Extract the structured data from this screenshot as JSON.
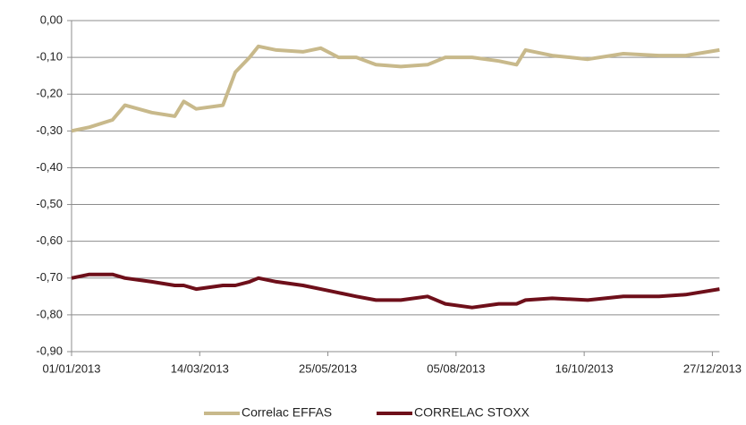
{
  "chart_data": {
    "type": "line",
    "x": [
      "01/01/2013",
      "11/01/2013",
      "24/01/2013",
      "31/01/2013",
      "15/02/2013",
      "28/02/2013",
      "05/03/2013",
      "12/03/2013",
      "27/03/2013",
      "03/04/2013",
      "11/04/2013",
      "16/04/2013",
      "26/04/2013",
      "11/05/2013",
      "21/05/2013",
      "31/05/2013",
      "10/06/2013",
      "21/06/2013",
      "05/07/2013",
      "20/07/2013",
      "30/07/2013",
      "14/08/2013",
      "29/08/2013",
      "08/09/2013",
      "13/09/2013",
      "28/09/2013",
      "18/10/2013",
      "07/11/2013",
      "27/11/2013",
      "12/12/2013",
      "31/12/2013"
    ],
    "series": [
      {
        "name": "Correlac EFFAS",
        "color": "#c8b98b",
        "values": [
          -0.3,
          -0.29,
          -0.27,
          -0.23,
          -0.25,
          -0.26,
          -0.22,
          -0.24,
          -0.23,
          -0.14,
          -0.1,
          -0.07,
          -0.08,
          -0.085,
          -0.075,
          -0.1,
          -0.1,
          -0.12,
          -0.125,
          -0.12,
          -0.1,
          -0.1,
          -0.11,
          -0.12,
          -0.08,
          -0.095,
          -0.105,
          -0.09,
          -0.095,
          -0.095,
          -0.08
        ]
      },
      {
        "name": "CORRELAC STOXX",
        "color": "#6e0f1a",
        "values": [
          -0.7,
          -0.69,
          -0.69,
          -0.7,
          -0.71,
          -0.72,
          -0.72,
          -0.73,
          -0.72,
          -0.72,
          -0.71,
          -0.7,
          -0.71,
          -0.72,
          -0.73,
          -0.74,
          -0.75,
          -0.76,
          -0.76,
          -0.75,
          -0.77,
          -0.78,
          -0.77,
          -0.77,
          -0.76,
          -0.755,
          -0.76,
          -0.75,
          -0.75,
          -0.745,
          -0.73
        ]
      }
    ],
    "xlim": [
      "01/01/2013",
      "31/12/2013"
    ],
    "xticks": [
      "01/01/2013",
      "14/03/2013",
      "25/05/2013",
      "05/08/2013",
      "16/10/2013",
      "27/12/2013"
    ],
    "ylim": [
      -0.9,
      0
    ],
    "yticks": [
      {
        "value": 0,
        "label": "0,00"
      },
      {
        "value": -0.1,
        "label": "-0,10"
      },
      {
        "value": -0.2,
        "label": "-0,20"
      },
      {
        "value": -0.3,
        "label": "-0,30"
      },
      {
        "value": -0.4,
        "label": "-0,40"
      },
      {
        "value": -0.5,
        "label": "-0,50"
      },
      {
        "value": -0.6,
        "label": "-0,60"
      },
      {
        "value": -0.7,
        "label": "-0,70"
      },
      {
        "value": -0.8,
        "label": "-0,80"
      },
      {
        "value": -0.9,
        "label": "-0,90"
      }
    ],
    "grid": true,
    "legend": "bottom"
  }
}
